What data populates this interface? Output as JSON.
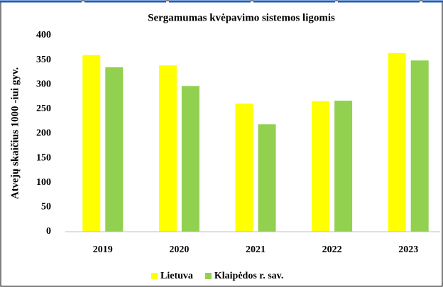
{
  "chart_data": {
    "type": "bar",
    "title": "Sergamumas kvėpavimo sistemos ligomis",
    "y_label": "Atvejų skaičius 1000 -iui gyv.",
    "categories": [
      "2019",
      "2020",
      "2021",
      "2022",
      "2023"
    ],
    "series": [
      {
        "name": "Lietuva",
        "color": "#ffff00",
        "values": [
          360,
          339,
          261,
          266,
          364
        ]
      },
      {
        "name": "Klaipėdos r. sav.",
        "color": "#92d050",
        "values": [
          335,
          297,
          219,
          267,
          349
        ]
      }
    ],
    "ylim": [
      0,
      400
    ],
    "yticks": [
      0,
      50,
      100,
      150,
      200,
      250,
      300,
      350,
      400
    ],
    "grid": false,
    "legend": "bottom"
  }
}
